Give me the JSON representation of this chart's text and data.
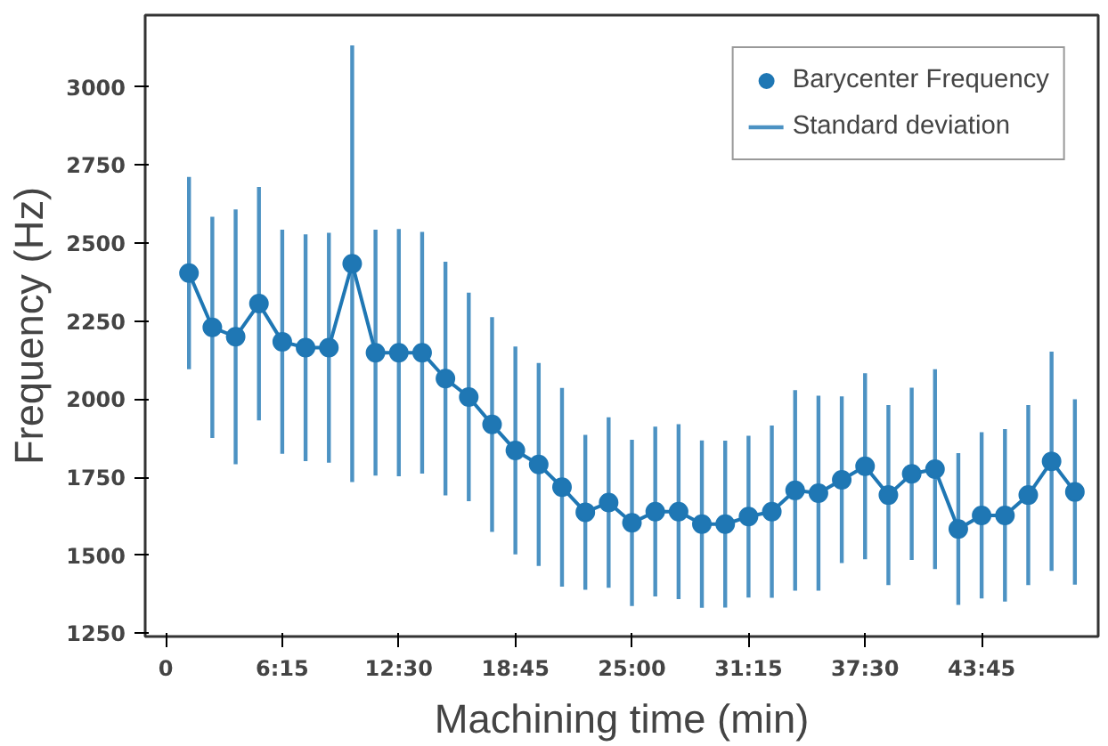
{
  "chart_data": {
    "type": "line",
    "xlabel": "Machining time (min)",
    "ylabel": "Frequency (Hz)",
    "x": [
      1.25,
      2.5,
      3.75,
      5,
      6.25,
      7.5,
      8.75,
      10,
      11.25,
      12.5,
      13.75,
      15,
      16.25,
      17.5,
      18.75,
      20,
      21.25,
      22.5,
      23.75,
      25,
      26.25,
      27.5,
      28.75,
      30,
      31.25,
      32.5,
      33.75,
      35,
      36.25,
      37.5,
      38.75,
      40,
      41.25,
      42.5,
      43.75,
      45,
      46.25,
      47.5,
      48.75
    ],
    "series": [
      {
        "name": "Barycenter Frequency",
        "color": "#1f77b4",
        "values": [
          2404,
          2230,
          2200,
          2306,
          2184,
          2165,
          2165,
          2434,
          2149,
          2149,
          2149,
          2066,
          2007,
          1919,
          1836,
          1791,
          1718,
          1638,
          1669,
          1604,
          1640,
          1640,
          1600,
          1600,
          1624,
          1640,
          1708,
          1699,
          1742,
          1785,
          1693,
          1761,
          1776,
          1584,
          1628,
          1628,
          1693,
          1801,
          1703
        ],
        "errors": [
          308,
          354,
          408,
          374,
          359,
          363,
          368,
          699,
          394,
          396,
          387,
          374,
          334,
          344,
          333,
          325,
          318,
          248,
          273,
          266,
          272,
          280,
          268,
          267,
          259,
          276,
          321,
          312,
          267,
          298,
          288,
          276,
          320,
          243,
          266,
          276,
          288,
          351,
          297
        ]
      }
    ],
    "annotations": [
      "Standard deviation"
    ],
    "marker": "circle",
    "line_style": "solid",
    "legend": "top right",
    "grid": false,
    "xlim": [
      -1.1,
      50.0
    ],
    "ylim": [
      1240,
      3230
    ],
    "xticks": [
      0,
      {
        "value": 6.25,
        "label": "6:15"
      },
      {
        "value": 12.5,
        "label": "12:30"
      },
      {
        "value": 18.75,
        "label": "18:45"
      },
      {
        "value": 25,
        "label": "25:00"
      },
      {
        "value": 31.25,
        "label": "31:15"
      },
      {
        "value": 37.5,
        "label": "37:30"
      },
      {
        "value": 43.75,
        "label": "43:45"
      }
    ],
    "yticks": [
      1250,
      1500,
      1750,
      2000,
      2250,
      2500,
      2750,
      3000
    ]
  }
}
